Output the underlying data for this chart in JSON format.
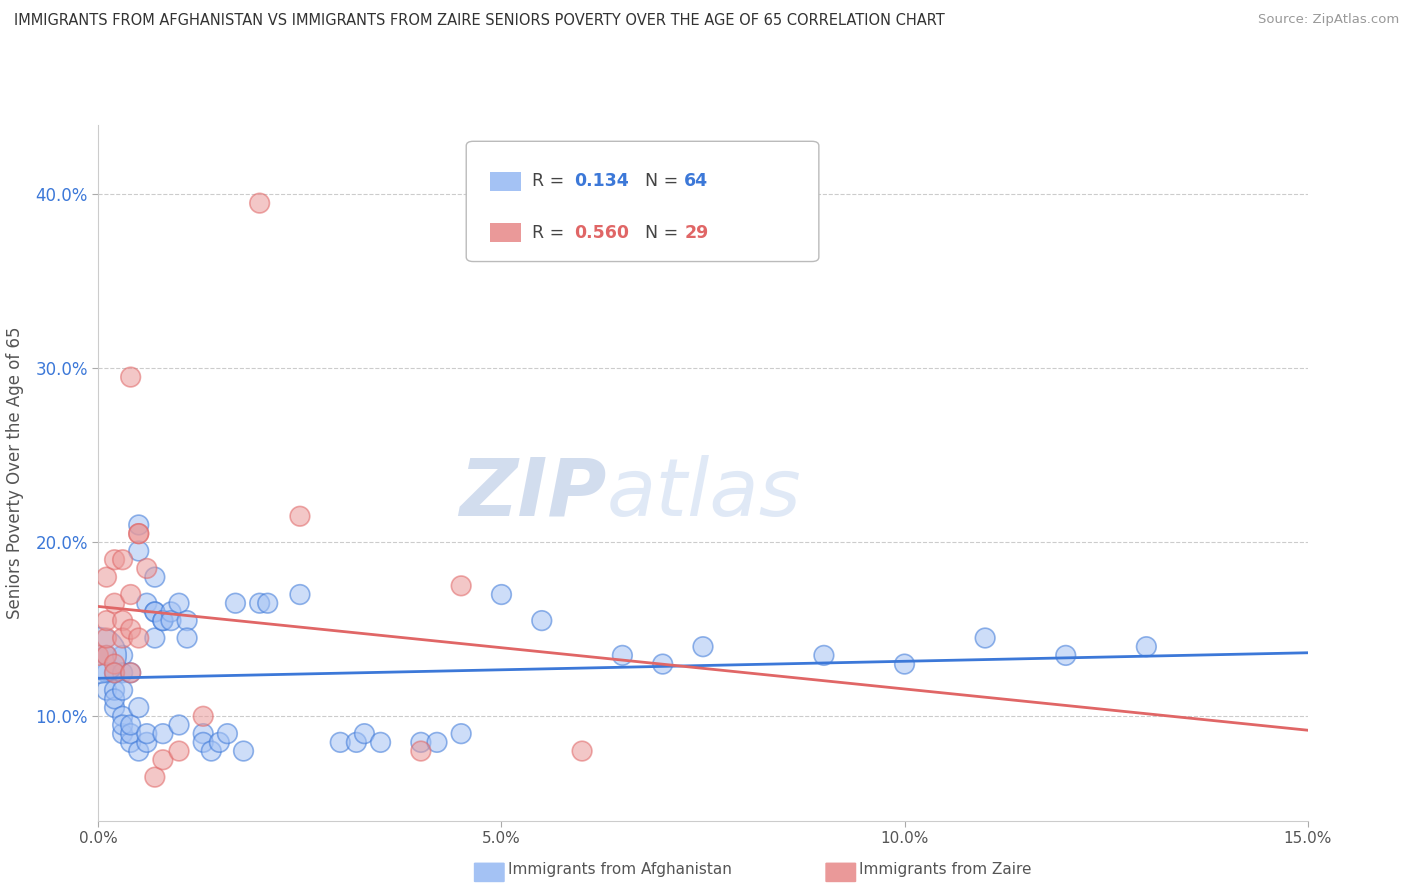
{
  "title": "IMMIGRANTS FROM AFGHANISTAN VS IMMIGRANTS FROM ZAIRE SENIORS POVERTY OVER THE AGE OF 65 CORRELATION CHART",
  "source": "Source: ZipAtlas.com",
  "ylabel": "Seniors Poverty Over the Age of 65",
  "xlim": [
    0.0,
    0.15
  ],
  "ylim": [
    0.04,
    0.44
  ],
  "xticks": [
    0.0,
    0.05,
    0.1,
    0.15
  ],
  "xticklabels": [
    "0.0%",
    "5.0%",
    "10.0%",
    "15.0%"
  ],
  "yticks": [
    0.1,
    0.2,
    0.3,
    0.4
  ],
  "yticklabels": [
    "10.0%",
    "20.0%",
    "30.0%",
    "40.0%"
  ],
  "afghanistan_color": "#a4c2f4",
  "zaire_color": "#ea9999",
  "afghanistan_line_color": "#3c78d8",
  "zaire_line_color": "#e06666",
  "watermark_zip": "ZIP",
  "watermark_atlas": "atlas",
  "afghanistan_points": [
    [
      0.001,
      0.135
    ],
    [
      0.001,
      0.125
    ],
    [
      0.001,
      0.115
    ],
    [
      0.002,
      0.125
    ],
    [
      0.002,
      0.105
    ],
    [
      0.002,
      0.115
    ],
    [
      0.002,
      0.11
    ],
    [
      0.003,
      0.135
    ],
    [
      0.003,
      0.09
    ],
    [
      0.003,
      0.1
    ],
    [
      0.003,
      0.095
    ],
    [
      0.003,
      0.125
    ],
    [
      0.003,
      0.115
    ],
    [
      0.004,
      0.125
    ],
    [
      0.004,
      0.085
    ],
    [
      0.004,
      0.09
    ],
    [
      0.004,
      0.095
    ],
    [
      0.005,
      0.105
    ],
    [
      0.005,
      0.195
    ],
    [
      0.005,
      0.21
    ],
    [
      0.005,
      0.08
    ],
    [
      0.006,
      0.085
    ],
    [
      0.006,
      0.09
    ],
    [
      0.006,
      0.165
    ],
    [
      0.007,
      0.18
    ],
    [
      0.007,
      0.16
    ],
    [
      0.007,
      0.145
    ],
    [
      0.007,
      0.16
    ],
    [
      0.008,
      0.09
    ],
    [
      0.008,
      0.155
    ],
    [
      0.008,
      0.155
    ],
    [
      0.009,
      0.16
    ],
    [
      0.009,
      0.155
    ],
    [
      0.01,
      0.095
    ],
    [
      0.01,
      0.165
    ],
    [
      0.011,
      0.155
    ],
    [
      0.011,
      0.145
    ],
    [
      0.013,
      0.09
    ],
    [
      0.013,
      0.085
    ],
    [
      0.014,
      0.08
    ],
    [
      0.015,
      0.085
    ],
    [
      0.016,
      0.09
    ],
    [
      0.017,
      0.165
    ],
    [
      0.018,
      0.08
    ],
    [
      0.02,
      0.165
    ],
    [
      0.021,
      0.165
    ],
    [
      0.025,
      0.17
    ],
    [
      0.03,
      0.085
    ],
    [
      0.032,
      0.085
    ],
    [
      0.033,
      0.09
    ],
    [
      0.035,
      0.085
    ],
    [
      0.04,
      0.085
    ],
    [
      0.042,
      0.085
    ],
    [
      0.045,
      0.09
    ],
    [
      0.05,
      0.17
    ],
    [
      0.055,
      0.155
    ],
    [
      0.065,
      0.135
    ],
    [
      0.07,
      0.13
    ],
    [
      0.075,
      0.14
    ],
    [
      0.09,
      0.135
    ],
    [
      0.1,
      0.13
    ],
    [
      0.11,
      0.145
    ],
    [
      0.12,
      0.135
    ],
    [
      0.13,
      0.14
    ],
    [
      0.0,
      0.135
    ]
  ],
  "zaire_points": [
    [
      0.0,
      0.135
    ],
    [
      0.001,
      0.135
    ],
    [
      0.001,
      0.145
    ],
    [
      0.001,
      0.155
    ],
    [
      0.001,
      0.18
    ],
    [
      0.002,
      0.13
    ],
    [
      0.002,
      0.165
    ],
    [
      0.002,
      0.125
    ],
    [
      0.002,
      0.19
    ],
    [
      0.003,
      0.155
    ],
    [
      0.003,
      0.145
    ],
    [
      0.003,
      0.19
    ],
    [
      0.004,
      0.295
    ],
    [
      0.004,
      0.15
    ],
    [
      0.004,
      0.17
    ],
    [
      0.004,
      0.125
    ],
    [
      0.005,
      0.145
    ],
    [
      0.005,
      0.205
    ],
    [
      0.005,
      0.205
    ],
    [
      0.006,
      0.185
    ],
    [
      0.007,
      0.065
    ],
    [
      0.008,
      0.075
    ],
    [
      0.01,
      0.08
    ],
    [
      0.013,
      0.1
    ],
    [
      0.02,
      0.395
    ],
    [
      0.025,
      0.215
    ],
    [
      0.04,
      0.08
    ],
    [
      0.045,
      0.175
    ],
    [
      0.06,
      0.08
    ]
  ],
  "afghanistan_sizes": [
    200,
    200,
    200,
    200,
    200,
    200,
    200,
    200,
    200,
    200,
    200,
    200,
    200,
    200,
    200,
    200,
    200,
    200,
    200,
    200,
    200,
    200,
    200,
    200,
    200,
    200,
    200,
    200,
    200,
    200,
    200,
    200,
    200,
    200,
    200,
    200,
    200,
    200,
    200,
    200,
    200,
    200,
    200,
    200,
    200,
    200,
    200,
    200,
    200,
    200,
    200,
    200,
    200,
    200,
    200,
    200,
    200,
    200,
    200,
    200,
    200,
    200,
    200,
    200,
    1600
  ],
  "zaire_sizes": [
    200,
    200,
    200,
    200,
    200,
    200,
    200,
    200,
    200,
    200,
    200,
    200,
    200,
    200,
    200,
    200,
    200,
    200,
    200,
    200,
    200,
    200,
    200,
    200,
    200,
    200,
    200,
    200,
    200
  ]
}
